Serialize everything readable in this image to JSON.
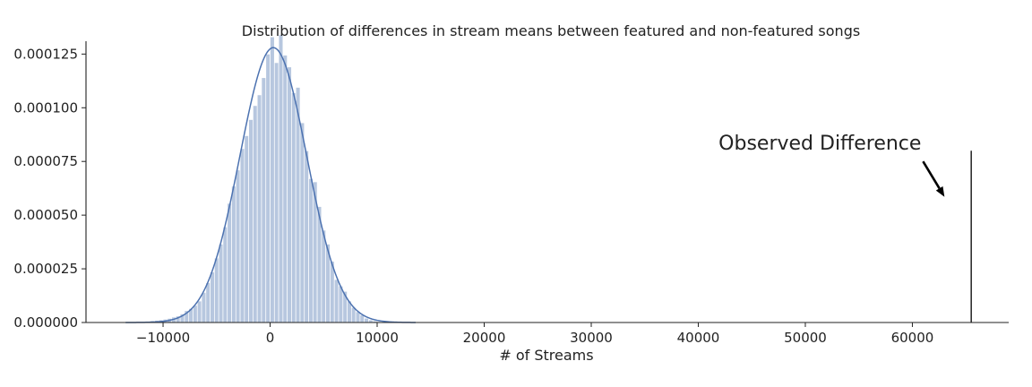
{
  "chart_data": {
    "type": "bar",
    "title": "Distribution of differences in stream means between featured and non-featured songs",
    "xlabel": "# of Streams",
    "ylabel": "",
    "xlim": [
      -17200,
      69000
    ],
    "ylim": [
      0,
      0.000141
    ],
    "x_ticks": [
      -10000,
      0,
      10000,
      20000,
      30000,
      40000,
      50000,
      60000
    ],
    "x_tick_labels": [
      "−10000",
      "0",
      "10000",
      "20000",
      "30000",
      "40000",
      "50000",
      "60000"
    ],
    "y_ticks": [
      0,
      2.5e-05,
      5e-05,
      7.5e-05,
      0.0001,
      0.000125
    ],
    "y_tick_labels": [
      "0.000000",
      "0.000025",
      "0.000050",
      "0.000075",
      "0.000100",
      "0.000125"
    ],
    "grid": false,
    "bar_color": "#4c72b0",
    "bar_opacity": 0.4,
    "kde_color": "#4c72b0",
    "histogram": {
      "bin_width": 400,
      "bin_start": -13600,
      "values": [
        1e-07,
        1e-07,
        2e-07,
        3e-07,
        4e-07,
        6e-07,
        8e-07,
        1e-06,
        1.2e-06,
        1.5e-06,
        1.9e-06,
        2.5e-06,
        3e-06,
        4e-06,
        5.5e-06,
        6.5e-06,
        8e-06,
        1e-05,
        1.4e-05,
        1.85e-05,
        2.35e-05,
        3e-05,
        3.65e-05,
        4.45e-05,
        5.55e-05,
        6.35e-05,
        7.1e-05,
        8.1e-05,
        8.7e-05,
        9.45e-05,
        0.000101,
        0.000106,
        0.000114,
        0.000125,
        0.000133,
        0.000121,
        0.000134,
        0.0001245,
        0.000119,
        0.000107,
        0.0001095,
        9.3e-05,
        8e-05,
        6.7e-05,
        6.55e-05,
        5.4e-05,
        4.3e-05,
        3.65e-05,
        2.85e-05,
        2e-05,
        1.7e-05,
        1.45e-05,
        1e-05,
        7e-06,
        5e-06,
        3.5e-06,
        2e-06,
        1.2e-06,
        7e-07,
        4e-07,
        2e-07,
        1e-07,
        1e-07
      ]
    },
    "kde": {
      "x_range": [
        -13500,
        13600
      ],
      "mean": 300,
      "sd": 3120,
      "peak": 0.000128
    },
    "observed_line": {
      "x": 65500,
      "y_range": [
        0,
        8e-05
      ],
      "color": "#222222"
    },
    "annotation": {
      "text": "Observed Difference",
      "text_x": 41900,
      "text_y": 8.05e-05,
      "arrow_from": [
        61000,
        7.5e-05
      ],
      "arrow_to": [
        63000,
        5.85e-05
      ]
    }
  }
}
